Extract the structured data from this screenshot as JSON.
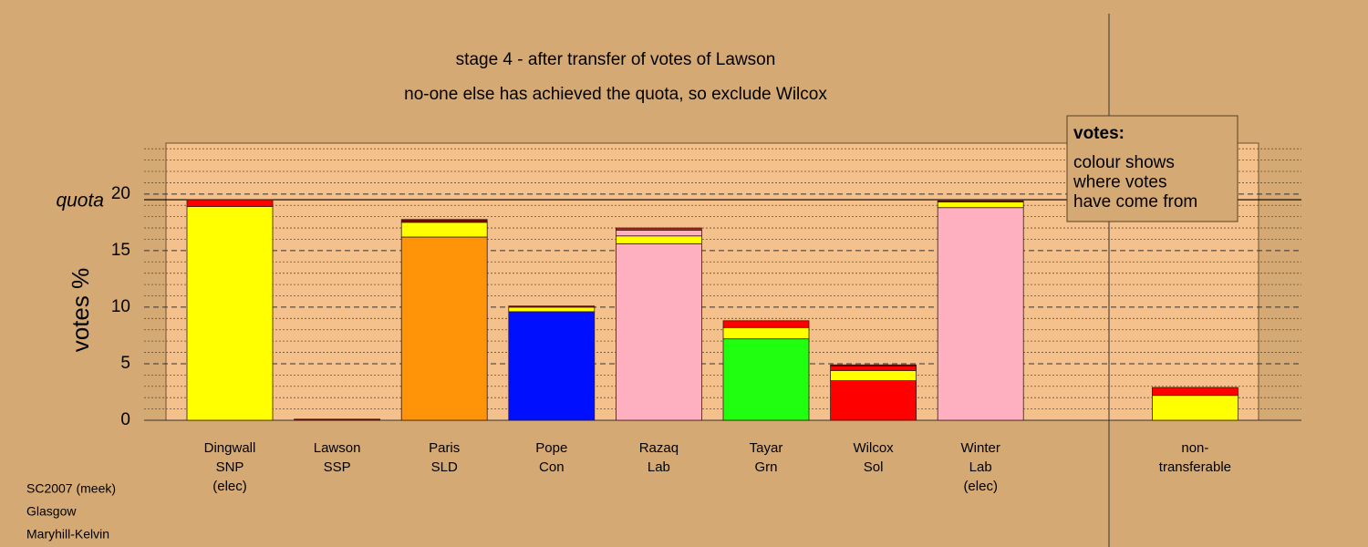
{
  "chart_data": {
    "type": "stacked-bar",
    "title": "stage 4 - after transfer of votes of Lawson",
    "subtitle": "no-one else has achieved the quota, so exclude Wilcox",
    "y_label": "votes %",
    "quota_label": "quota",
    "quota": 19.5,
    "ylim": [
      0,
      24.5
    ],
    "yticks": [
      0,
      5,
      10,
      15,
      20
    ],
    "yticks_minor": [
      1,
      2,
      3,
      4,
      6,
      7,
      8,
      9,
      11,
      12,
      13,
      14,
      16,
      17,
      18,
      19,
      21,
      22,
      23,
      24
    ],
    "legend": {
      "title": "votes:",
      "lines": [
        "colour shows",
        "where votes",
        "have come from"
      ]
    },
    "footer": [
      "SC2007 (meek)",
      "Glasgow",
      "Maryhill-Kelvin"
    ],
    "bars": [
      {
        "label": [
          "Dingwall",
          "SNP",
          "(elec)"
        ],
        "segments": [
          {
            "color": "#ffff00",
            "value": 18.9
          },
          {
            "color": "#ff0000",
            "value": 0.6
          }
        ]
      },
      {
        "label": [
          "Lawson",
          "SSP"
        ],
        "segments": [
          {
            "color": "#800000",
            "value": 0.1
          }
        ]
      },
      {
        "label": [
          "Paris",
          "SLD"
        ],
        "segments": [
          {
            "color": "#ff9408",
            "value": 16.2
          },
          {
            "color": "#ffff00",
            "value": 1.3
          },
          {
            "color": "#800000",
            "value": 0.25
          }
        ]
      },
      {
        "label": [
          "Pope",
          "Con"
        ],
        "segments": [
          {
            "color": "#0010ff",
            "value": 9.6
          },
          {
            "color": "#ffff00",
            "value": 0.4
          },
          {
            "color": "#800000",
            "value": 0.1
          }
        ]
      },
      {
        "label": [
          "Razaq",
          "Lab"
        ],
        "segments": [
          {
            "color": "#ffb0c0",
            "value": 15.6
          },
          {
            "color": "#ffff00",
            "value": 0.7
          },
          {
            "color": "#ffb0c0",
            "value": 0.5
          },
          {
            "color": "#cc2020",
            "value": 0.2
          }
        ]
      },
      {
        "label": [
          "Tayar",
          "Grn"
        ],
        "segments": [
          {
            "color": "#20ff10",
            "value": 7.2
          },
          {
            "color": "#ffff00",
            "value": 1.0
          },
          {
            "color": "#ff0000",
            "value": 0.6
          }
        ]
      },
      {
        "label": [
          "Wilcox",
          "Sol"
        ],
        "segments": [
          {
            "color": "#ff0000",
            "value": 3.5
          },
          {
            "color": "#ffff00",
            "value": 0.9
          },
          {
            "color": "#ff0000",
            "value": 0.4
          },
          {
            "color": "#800000",
            "value": 0.1
          }
        ]
      },
      {
        "label": [
          "Winter",
          "Lab",
          "(elec)"
        ],
        "segments": [
          {
            "color": "#ffb0c0",
            "value": 18.8
          },
          {
            "color": "#ffff00",
            "value": 0.5
          },
          {
            "color": "#800000",
            "value": 0.1
          }
        ]
      },
      {
        "label": [
          "non-",
          "transferable"
        ],
        "segments": [
          {
            "color": "#ffff00",
            "value": 2.2
          },
          {
            "color": "#ff0000",
            "value": 0.7
          }
        ]
      }
    ]
  }
}
